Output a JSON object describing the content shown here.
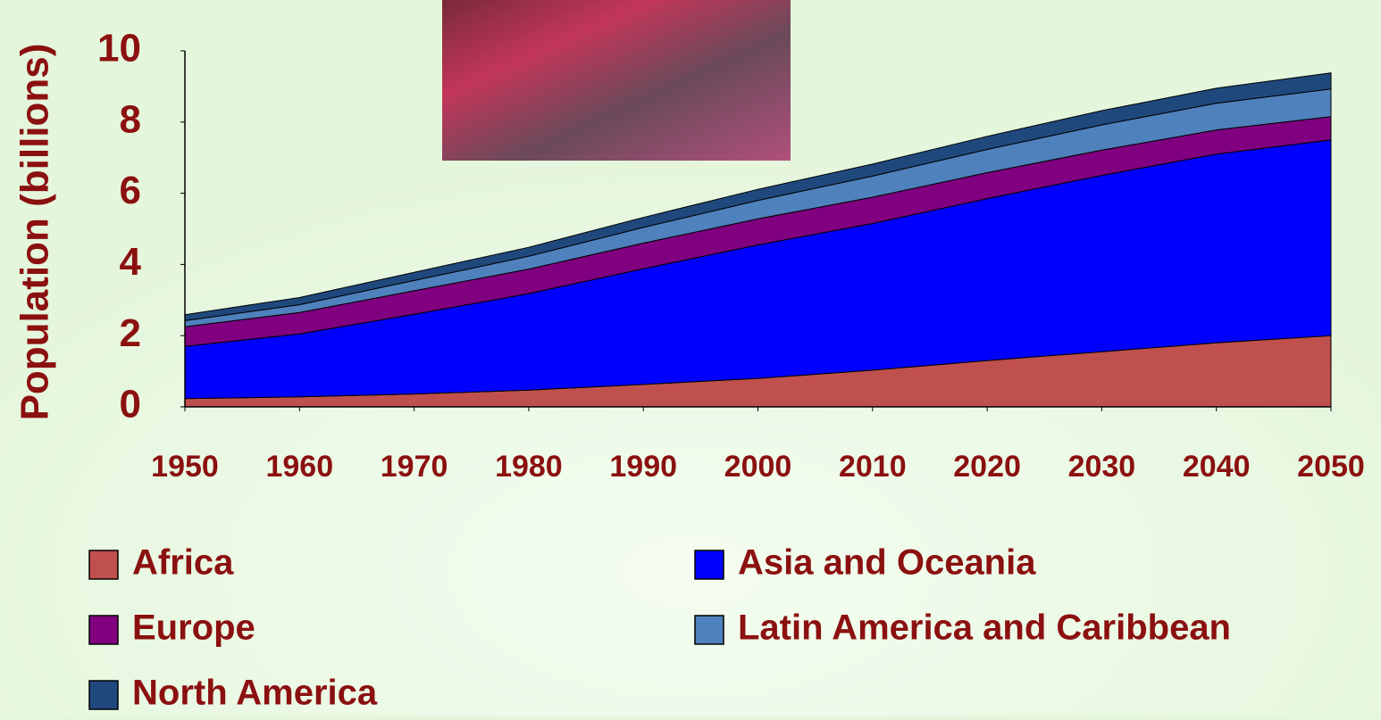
{
  "chart_data": {
    "type": "area",
    "stacked": true,
    "ylabel": "Population (billions)",
    "x": [
      1950,
      1960,
      1970,
      1980,
      1990,
      2000,
      2010,
      2020,
      2030,
      2040,
      2050
    ],
    "xlim": [
      1950,
      2050
    ],
    "xticks": [
      1950,
      1960,
      1970,
      1980,
      1990,
      2000,
      2010,
      2020,
      2030,
      2040,
      2050
    ],
    "ylim": [
      0,
      10
    ],
    "yticks": [
      0,
      2,
      4,
      6,
      8,
      10
    ],
    "grid": false,
    "series": [
      {
        "name": "Africa",
        "color": "#c0504d",
        "values": [
          0.23,
          0.28,
          0.36,
          0.47,
          0.63,
          0.8,
          1.03,
          1.3,
          1.55,
          1.8,
          2.0
        ]
      },
      {
        "name": "Asia and Oceania",
        "color": "#0000ff",
        "values": [
          1.47,
          1.77,
          2.24,
          2.71,
          3.25,
          3.75,
          4.12,
          4.55,
          4.95,
          5.3,
          5.5
        ]
      },
      {
        "name": "Europe",
        "color": "#800080",
        "values": [
          0.55,
          0.6,
          0.66,
          0.69,
          0.72,
          0.73,
          0.74,
          0.73,
          0.71,
          0.68,
          0.65
        ]
      },
      {
        "name": "Latin America and Caribbean",
        "color": "#4f81bd",
        "values": [
          0.17,
          0.22,
          0.29,
          0.36,
          0.44,
          0.52,
          0.59,
          0.65,
          0.71,
          0.75,
          0.78
        ]
      },
      {
        "name": "North America",
        "color": "#1f497d",
        "values": [
          0.17,
          0.2,
          0.23,
          0.25,
          0.28,
          0.31,
          0.34,
          0.37,
          0.4,
          0.42,
          0.45
        ]
      }
    ]
  }
}
